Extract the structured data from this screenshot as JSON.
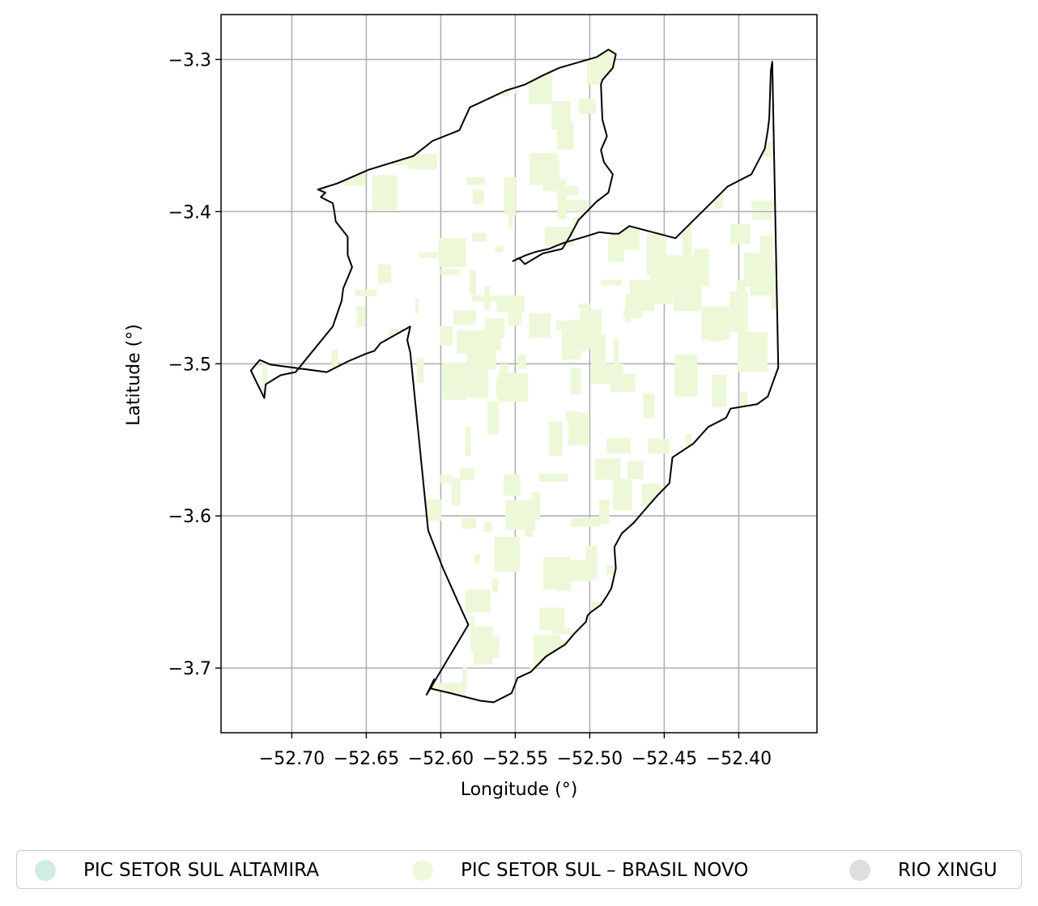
{
  "chart_data": {
    "type": "map",
    "xlabel": "Longitude (°)",
    "ylabel": "Latitude (°)",
    "xlim": [
      -52.7475,
      -52.3475
    ],
    "ylim": [
      -3.7425,
      -3.2705
    ],
    "grid": true,
    "xticks": [
      {
        "value": -52.7,
        "label": "−52.70"
      },
      {
        "value": -52.65,
        "label": "−52.65"
      },
      {
        "value": -52.6,
        "label": "−52.60"
      },
      {
        "value": -52.55,
        "label": "−52.55"
      },
      {
        "value": -52.5,
        "label": "−52.50"
      },
      {
        "value": -52.45,
        "label": "−52.45"
      },
      {
        "value": -52.4,
        "label": "−52.40"
      }
    ],
    "yticks": [
      {
        "value": -3.3,
        "label": "−3.3"
      },
      {
        "value": -3.4,
        "label": "−3.4"
      },
      {
        "value": -3.5,
        "label": "−3.5"
      },
      {
        "value": -3.6,
        "label": "−3.6"
      },
      {
        "value": -3.7,
        "label": "−3.7"
      }
    ],
    "boundary": [
      [
        -52.4875,
        -3.2935
      ],
      [
        -52.4825,
        -3.2965
      ],
      [
        -52.4845,
        -3.3055
      ],
      [
        -52.4915,
        -3.3135
      ],
      [
        -52.4925,
        -3.3165
      ],
      [
        -52.4915,
        -3.3395
      ],
      [
        -52.4885,
        -3.3505
      ],
      [
        -52.4925,
        -3.3595
      ],
      [
        -52.4905,
        -3.3675
      ],
      [
        -52.4845,
        -3.3755
      ],
      [
        -52.4875,
        -3.3875
      ],
      [
        -52.4955,
        -3.3935
      ],
      [
        -52.5075,
        -3.4055
      ],
      [
        -52.5135,
        -3.4165
      ],
      [
        -52.5185,
        -3.4245
      ],
      [
        -52.5315,
        -3.4275
      ],
      [
        -52.5385,
        -3.4315
      ],
      [
        -52.5435,
        -3.4345
      ],
      [
        -52.5475,
        -3.4305
      ],
      [
        -52.5515,
        -3.4325
      ],
      [
        -52.5425,
        -3.4285
      ],
      [
        -52.5365,
        -3.4265
      ],
      [
        -52.5275,
        -3.4245
      ],
      [
        -52.5175,
        -3.4205
      ],
      [
        -52.5035,
        -3.4165
      ],
      [
        -52.4935,
        -3.4135
      ],
      [
        -52.4845,
        -3.4145
      ],
      [
        -52.4805,
        -3.4145
      ],
      [
        -52.4735,
        -3.4095
      ],
      [
        -52.4425,
        -3.4175
      ],
      [
        -52.4075,
        -3.3835
      ],
      [
        -52.3915,
        -3.3755
      ],
      [
        -52.3825,
        -3.3585
      ],
      [
        -52.3805,
        -3.3465
      ],
      [
        -52.3795,
        -3.3385
      ],
      [
        -52.3785,
        -3.3075
      ],
      [
        -52.3775,
        -3.3015
      ],
      [
        -52.3735,
        -3.5025
      ],
      [
        -52.3805,
        -3.5215
      ],
      [
        -52.3875,
        -3.5265
      ],
      [
        -52.4055,
        -3.5295
      ],
      [
        -52.4085,
        -3.5355
      ],
      [
        -52.4205,
        -3.5415
      ],
      [
        -52.4305,
        -3.5525
      ],
      [
        -52.4445,
        -3.5615
      ],
      [
        -52.4465,
        -3.5785
      ],
      [
        -52.4545,
        -3.5865
      ],
      [
        -52.4635,
        -3.5965
      ],
      [
        -52.4705,
        -3.6045
      ],
      [
        -52.4785,
        -3.6115
      ],
      [
        -52.4835,
        -3.6205
      ],
      [
        -52.4825,
        -3.6345
      ],
      [
        -52.4855,
        -3.6475
      ],
      [
        -52.4885,
        -3.6525
      ],
      [
        -52.4925,
        -3.6585
      ],
      [
        -52.4995,
        -3.6635
      ],
      [
        -52.5015,
        -3.6655
      ],
      [
        -52.5025,
        -3.6695
      ],
      [
        -52.5105,
        -3.6775
      ],
      [
        -52.5165,
        -3.6845
      ],
      [
        -52.5295,
        -3.6925
      ],
      [
        -52.5395,
        -3.7025
      ],
      [
        -52.5485,
        -3.7065
      ],
      [
        -52.5525,
        -3.7165
      ],
      [
        -52.5645,
        -3.7225
      ],
      [
        -52.5735,
        -3.7215
      ],
      [
        -52.5935,
        -3.7165
      ],
      [
        -52.6065,
        -3.7135
      ],
      [
        -52.6045,
        -3.7075
      ],
      [
        -52.6095,
        -3.7175
      ],
      [
        -52.5815,
        -3.6715
      ],
      [
        -52.5885,
        -3.6565
      ],
      [
        -52.5985,
        -3.6345
      ],
      [
        -52.6085,
        -3.6095
      ],
      [
        -52.6205,
        -3.4925
      ],
      [
        -52.6225,
        -3.4845
      ],
      [
        -52.6205,
        -3.4755
      ],
      [
        -52.6405,
        -3.4865
      ],
      [
        -52.6445,
        -3.4915
      ],
      [
        -52.6505,
        -3.4935
      ],
      [
        -52.6625,
        -3.4985
      ],
      [
        -52.6765,
        -3.5055
      ],
      [
        -52.7145,
        -3.5005
      ],
      [
        -52.7215,
        -3.4975
      ],
      [
        -52.7275,
        -3.5045
      ],
      [
        -52.7185,
        -3.5225
      ],
      [
        -52.7175,
        -3.5135
      ],
      [
        -52.7075,
        -3.5075
      ],
      [
        -52.6975,
        -3.5055
      ],
      [
        -52.6725,
        -3.4755
      ],
      [
        -52.6665,
        -3.4585
      ],
      [
        -52.6655,
        -3.4505
      ],
      [
        -52.6595,
        -3.4365
      ],
      [
        -52.6625,
        -3.4285
      ],
      [
        -52.6625,
        -3.4165
      ],
      [
        -52.6705,
        -3.4065
      ],
      [
        -52.6715,
        -3.3995
      ],
      [
        -52.6725,
        -3.3945
      ],
      [
        -52.6805,
        -3.3905
      ],
      [
        -52.6775,
        -3.3875
      ],
      [
        -52.6825,
        -3.3855
      ],
      [
        -52.6695,
        -3.3815
      ],
      [
        -52.6485,
        -3.3725
      ],
      [
        -52.6185,
        -3.3635
      ],
      [
        -52.6055,
        -3.3535
      ],
      [
        -52.5875,
        -3.3465
      ],
      [
        -52.5805,
        -3.3315
      ],
      [
        -52.5565,
        -3.3205
      ],
      [
        -52.5435,
        -3.3165
      ],
      [
        -52.5315,
        -3.3105
      ],
      [
        -52.5205,
        -3.3055
      ],
      [
        -52.4955,
        -3.2985
      ],
      [
        -52.4875,
        -3.2935
      ]
    ],
    "legend": {
      "placement": "bottom",
      "entries": [
        {
          "label": "PIC SETOR SUL ALTAMIRA",
          "color": "#cdeee0"
        },
        {
          "label": "PIC SETOR SUL – BRASIL NOVO",
          "color": "#edf8d8"
        },
        {
          "label": "RIO XINGU",
          "color": "#dedede"
        }
      ]
    },
    "colors": {
      "fill": "#edf8d8",
      "outline": "#000000",
      "grid": "#b0b0b0"
    }
  }
}
